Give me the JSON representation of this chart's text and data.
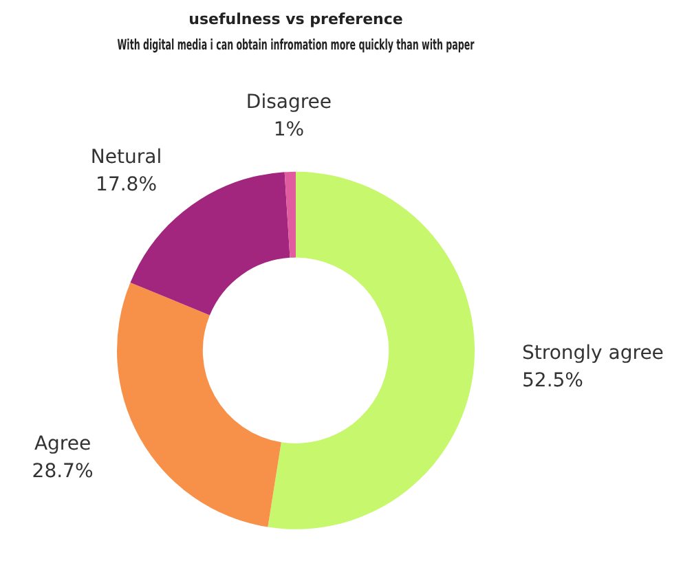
{
  "chart_data": {
    "type": "donut",
    "title": "usefulness vs preference",
    "subtitle": "With digital media i can obtain infromation more quickly than with paper",
    "categories": [
      "Strongly agree",
      "Agree",
      "Netural",
      "Disagree"
    ],
    "values": [
      52.5,
      28.7,
      17.8,
      1
    ],
    "colors": [
      "#c6f76c",
      "#f7914a",
      "#a2257e",
      "#e05c9e"
    ],
    "value_labels": [
      "52.5%",
      "28.7%",
      "17.8%",
      "1%"
    ],
    "legend": false
  }
}
